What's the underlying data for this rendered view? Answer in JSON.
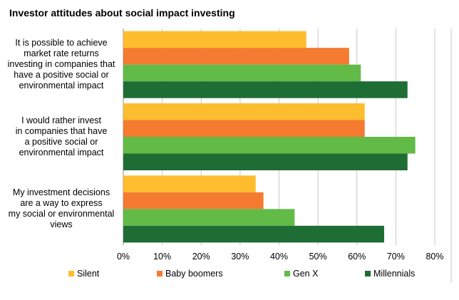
{
  "chart_data": {
    "type": "bar",
    "orientation": "horizontal",
    "title": "Investor attitudes about social impact investing",
    "categories": [
      "It is possible to achieve market rate returns investing in companies that have a positive social or environmental impact",
      "I would rather invest in companies that have a positive social or environmental impact",
      "My investment decisions are a way to express my social or environmental views"
    ],
    "category_lines": [
      [
        "It is possible to achieve",
        "market rate returns",
        "investing in companies that",
        "have a positive social or",
        "environmental impact"
      ],
      [
        "I would rather invest",
        "in companies that have",
        "a positive social or",
        "environmental impact"
      ],
      [
        "My investment decisions",
        "are a way to express",
        "my social or environmental",
        "views"
      ]
    ],
    "series": [
      {
        "name": "Silent",
        "color": "#FDBD2E",
        "values": [
          47,
          62,
          34
        ]
      },
      {
        "name": "Baby boomers",
        "color": "#F47B30",
        "values": [
          58,
          62,
          36
        ]
      },
      {
        "name": "Gen X",
        "color": "#62BA47",
        "values": [
          61,
          75,
          44
        ]
      },
      {
        "name": "Millennials",
        "color": "#1E6D35",
        "values": [
          73,
          73,
          67
        ]
      }
    ],
    "xlim": [
      0,
      80
    ],
    "x_ticks": [
      "0%",
      "10%",
      "20%",
      "30%",
      "40%",
      "50%",
      "60%",
      "70%",
      "80%"
    ],
    "grid": true,
    "legend_position": "bottom"
  }
}
